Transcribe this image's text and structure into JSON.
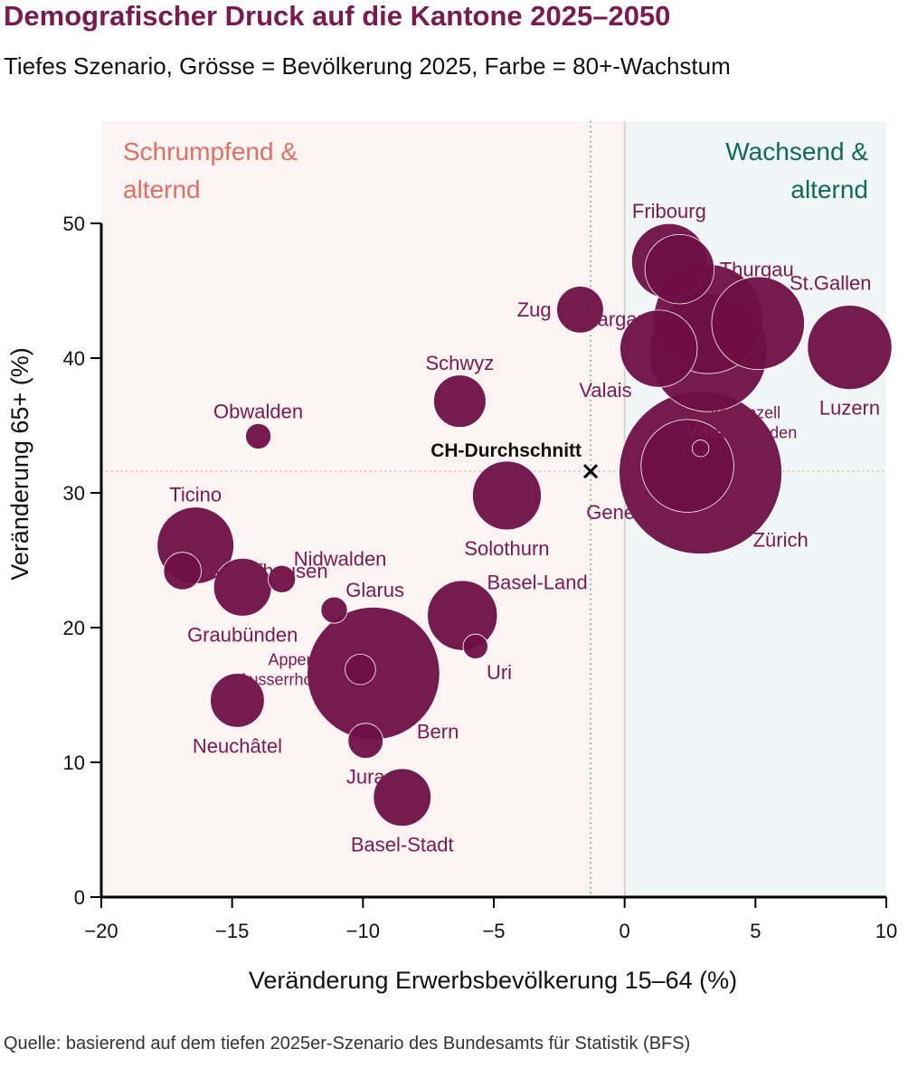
{
  "title": "Demografischer Druck auf die Kantone 2025–2050",
  "subtitle": "Tiefes Szenario, Grösse = Bevölkerung 2025, Farbe = 80+-Wachstum",
  "source": "Quelle: basierend auf dem tiefen 2025er-Szenario des Bundesamts für Statistik (BFS)",
  "colors": {
    "bubble": "#6e0f45",
    "label": "#7b1a4d",
    "shrinking_bg": "#fcf3f3",
    "growing_bg": "#f0f6f5",
    "shrinking_text": "#e07060",
    "growing_text": "#0e6b5a",
    "avg_v_line": "#2e9a6a",
    "avg_h_line": "#e59090"
  },
  "chart_data": {
    "type": "scatter",
    "xlabel": "Veränderung Erwerbsbevölkerung 15–64 (%)",
    "ylabel": "Veränderung 65+ (%)",
    "xlim": [
      -20,
      10
    ],
    "ylim": [
      0,
      55
    ],
    "xticks": [
      -20,
      -15,
      -10,
      -5,
      0,
      5,
      10
    ],
    "yticks": [
      0,
      10,
      20,
      30,
      40,
      50
    ],
    "xtick_labels": [
      "−20",
      "−15",
      "−10",
      "−5",
      "0",
      "5",
      "10"
    ],
    "ytick_labels": [
      "0",
      "10",
      "20",
      "30",
      "40",
      "50"
    ],
    "grid": false,
    "quadrants": {
      "shrinking": [
        "Schrumpfend &",
        "alternd"
      ],
      "growing": [
        "Wachsend &",
        "alternd"
      ]
    },
    "average": {
      "label": "CH-Durchschnitt",
      "x": -1.3,
      "y": 31.6
    },
    "points": [
      {
        "name": "Zürich",
        "lines": [
          "Zürich"
        ],
        "x": 2.9,
        "y": 31.5,
        "pop": 1600,
        "anchor": "below-right"
      },
      {
        "name": "Bern",
        "lines": [
          "Bern"
        ],
        "x": -9.6,
        "y": 16.6,
        "pop": 1060,
        "anchor": "below-right"
      },
      {
        "name": "Luzern",
        "lines": [
          "Luzern"
        ],
        "x": 8.6,
        "y": 40.8,
        "pop": 430,
        "anchor": "below"
      },
      {
        "name": "Uri",
        "lines": [
          "Uri"
        ],
        "x": -5.7,
        "y": 18.6,
        "pop": 37,
        "anchor": "below-right"
      },
      {
        "name": "Schwyz",
        "lines": [
          "Schwyz"
        ],
        "x": -6.3,
        "y": 36.8,
        "pop": 165,
        "anchor": "above"
      },
      {
        "name": "Obwalden",
        "lines": [
          "Obwalden"
        ],
        "x": -14.0,
        "y": 34.2,
        "pop": 39,
        "anchor": "above"
      },
      {
        "name": "Nidwalden",
        "lines": [
          "Nidwalden"
        ],
        "x": -13.1,
        "y": 23.6,
        "pop": 45,
        "anchor": "above-right"
      },
      {
        "name": "Glarus",
        "lines": [
          "Glarus"
        ],
        "x": -11.1,
        "y": 21.3,
        "pop": 42,
        "anchor": "above-right"
      },
      {
        "name": "Zug",
        "lines": [
          "Zug"
        ],
        "x": -1.7,
        "y": 43.6,
        "pop": 132,
        "anchor": "left"
      },
      {
        "name": "Fribourg",
        "lines": [
          "Fribourg"
        ],
        "x": 1.7,
        "y": 47.2,
        "pop": 340,
        "anchor": "above"
      },
      {
        "name": "Solothurn",
        "lines": [
          "Solothurn"
        ],
        "x": -4.5,
        "y": 29.8,
        "pop": 285,
        "anchor": "below"
      },
      {
        "name": "Basel-Stadt",
        "lines": [
          "Basel-Stadt"
        ],
        "x": -8.5,
        "y": 7.4,
        "pop": 200,
        "anchor": "below"
      },
      {
        "name": "Basel-Land",
        "lines": [
          "Basel-Land"
        ],
        "x": -6.2,
        "y": 20.9,
        "pop": 295,
        "anchor": "above-right"
      },
      {
        "name": "Schaffhausen",
        "lines": [
          "Schaffhausen"
        ],
        "x": -16.9,
        "y": 24.2,
        "pop": 85,
        "anchor": "right"
      },
      {
        "name": "Appenzell Ausserrhoden",
        "lines": [
          "Appenzell",
          "Ausserrhoden"
        ],
        "x": -10.1,
        "y": 16.9,
        "pop": 56,
        "anchor": "left"
      },
      {
        "name": "Appenzell Innerrhoden",
        "lines": [
          "Appenzell",
          "Innerrhoden"
        ],
        "x": 2.9,
        "y": 33.3,
        "pop": 17,
        "anchor": "above-right"
      },
      {
        "name": "St.Gallen",
        "lines": [
          "St.Gallen"
        ],
        "x": 5.1,
        "y": 42.6,
        "pop": 520,
        "anchor": "above-right"
      },
      {
        "name": "Graubünden",
        "lines": [
          "Graubünden"
        ],
        "x": -14.6,
        "y": 23.0,
        "pop": 202,
        "anchor": "below"
      },
      {
        "name": "Aargau",
        "lines": [
          "Aargau"
        ],
        "x": 3.2,
        "y": 42.9,
        "pop": 720,
        "anchor": "left"
      },
      {
        "name": "Thurgau",
        "lines": [
          "Thurgau"
        ],
        "x": 2.1,
        "y": 46.6,
        "pop": 290,
        "anchor": "right"
      },
      {
        "name": "Ticino",
        "lines": [
          "Ticino"
        ],
        "x": -16.4,
        "y": 26.1,
        "pop": 355,
        "anchor": "above"
      },
      {
        "name": "Vaud",
        "lines": [
          "Vaud"
        ],
        "x": 3.2,
        "y": 40.4,
        "pop": 840,
        "anchor": "below"
      },
      {
        "name": "Valais",
        "lines": [
          "Valais"
        ],
        "x": 1.3,
        "y": 40.7,
        "pop": 360,
        "anchor": "below-left"
      },
      {
        "name": "Neuchâtel",
        "lines": [
          "Neuchâtel"
        ],
        "x": -14.8,
        "y": 14.6,
        "pop": 176,
        "anchor": "below"
      },
      {
        "name": "Genève",
        "lines": [
          "Genève"
        ],
        "x": 2.4,
        "y": 32.0,
        "pop": 520,
        "anchor": "below-left"
      },
      {
        "name": "Jura",
        "lines": [
          "Jura"
        ],
        "x": -9.9,
        "y": 11.6,
        "pop": 74,
        "anchor": "below"
      }
    ]
  }
}
